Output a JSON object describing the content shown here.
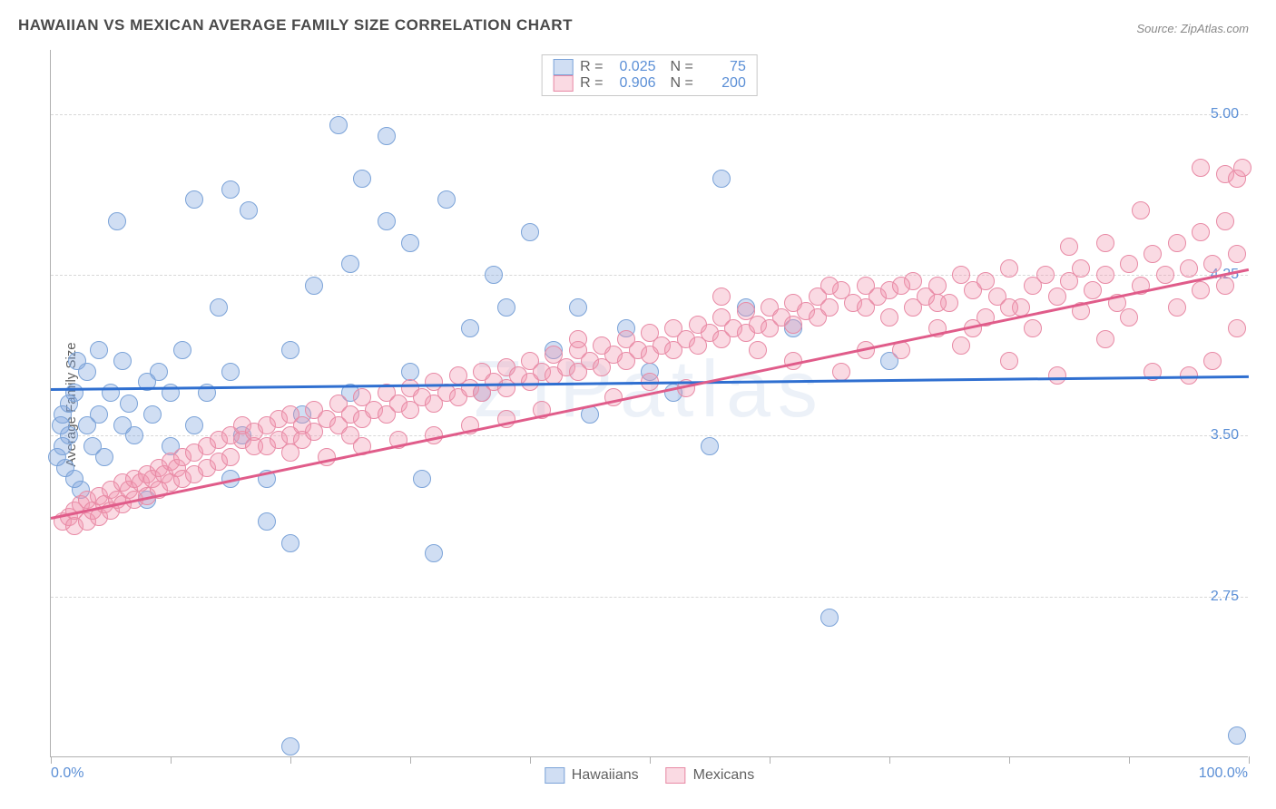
{
  "title": "HAWAIIAN VS MEXICAN AVERAGE FAMILY SIZE CORRELATION CHART",
  "source": "Source: ZipAtlas.com",
  "ylabel": "Average Family Size",
  "watermark": "ZIPatlas",
  "chart": {
    "type": "scatter",
    "xlim": [
      0,
      100
    ],
    "ylim": [
      2.0,
      5.3
    ],
    "yticks": [
      2.75,
      3.5,
      4.25,
      5.0
    ],
    "ytick_labels": [
      "2.75",
      "3.50",
      "4.25",
      "5.00"
    ],
    "xticks": [
      0,
      10,
      20,
      30,
      40,
      50,
      60,
      70,
      80,
      90,
      100
    ],
    "xmin_label": "0.0%",
    "xmax_label": "100.0%",
    "background_color": "#ffffff",
    "grid_color": "#d8d8d8",
    "axis_color": "#b0b0b0",
    "tick_label_color": "#5b8fd6",
    "marker_radius": 10,
    "marker_border_width": 1.5,
    "marker_fill_opacity": 0.35,
    "series": [
      {
        "name": "Hawaiians",
        "color_fill": "rgba(120,160,220,0.35)",
        "color_stroke": "#7ba3d8",
        "R": "0.025",
        "N": "75",
        "trend": {
          "x0": 0,
          "y0": 3.72,
          "x1": 100,
          "y1": 3.78,
          "color": "#2f6fd0",
          "width": 3
        },
        "points": [
          [
            0.5,
            3.4
          ],
          [
            0.8,
            3.55
          ],
          [
            1,
            3.45
          ],
          [
            1,
            3.6
          ],
          [
            1.2,
            3.35
          ],
          [
            1.5,
            3.5
          ],
          [
            1.5,
            3.65
          ],
          [
            2,
            3.7
          ],
          [
            2,
            3.3
          ],
          [
            2.2,
            3.85
          ],
          [
            2.5,
            3.25
          ],
          [
            3,
            3.8
          ],
          [
            3,
            3.55
          ],
          [
            3.5,
            3.45
          ],
          [
            4,
            3.9
          ],
          [
            4,
            3.6
          ],
          [
            4.5,
            3.4
          ],
          [
            5,
            3.7
          ],
          [
            5.5,
            4.5
          ],
          [
            6,
            3.55
          ],
          [
            6,
            3.85
          ],
          [
            6.5,
            3.65
          ],
          [
            7,
            3.5
          ],
          [
            8,
            3.75
          ],
          [
            8,
            3.2
          ],
          [
            8.5,
            3.6
          ],
          [
            9,
            3.8
          ],
          [
            10,
            3.7
          ],
          [
            10,
            3.45
          ],
          [
            11,
            3.9
          ],
          [
            12,
            4.6
          ],
          [
            12,
            3.55
          ],
          [
            13,
            3.7
          ],
          [
            14,
            4.1
          ],
          [
            15,
            4.65
          ],
          [
            15,
            3.8
          ],
          [
            16,
            3.5
          ],
          [
            16.5,
            4.55
          ],
          [
            18,
            3.3
          ],
          [
            18,
            3.1
          ],
          [
            20,
            3.9
          ],
          [
            20,
            3.0
          ],
          [
            21,
            3.6
          ],
          [
            22,
            4.2
          ],
          [
            24,
            4.95
          ],
          [
            25,
            3.7
          ],
          [
            25,
            4.3
          ],
          [
            26,
            4.7
          ],
          [
            28,
            4.5
          ],
          [
            28,
            4.9
          ],
          [
            30,
            3.8
          ],
          [
            30,
            4.4
          ],
          [
            31,
            3.3
          ],
          [
            32,
            2.95
          ],
          [
            33,
            4.6
          ],
          [
            35,
            4.0
          ],
          [
            36,
            3.7
          ],
          [
            37,
            4.25
          ],
          [
            38,
            4.1
          ],
          [
            40,
            4.45
          ],
          [
            42,
            3.9
          ],
          [
            44,
            4.1
          ],
          [
            45,
            3.6
          ],
          [
            48,
            4.0
          ],
          [
            50,
            3.8
          ],
          [
            52,
            3.7
          ],
          [
            55,
            3.45
          ],
          [
            56,
            4.7
          ],
          [
            58,
            4.1
          ],
          [
            62,
            4.0
          ],
          [
            65,
            2.65
          ],
          [
            70,
            3.85
          ],
          [
            99,
            2.1
          ],
          [
            20,
            2.05
          ],
          [
            15,
            3.3
          ]
        ]
      },
      {
        "name": "Mexicans",
        "color_fill": "rgba(240,150,175,0.35)",
        "color_stroke": "#e88aa5",
        "R": "0.906",
        "N": "200",
        "trend": {
          "x0": 0,
          "y0": 3.12,
          "x1": 100,
          "y1": 4.28,
          "color": "#e05c8a",
          "width": 3
        },
        "points": [
          [
            1,
            3.1
          ],
          [
            1.5,
            3.12
          ],
          [
            2,
            3.08
          ],
          [
            2,
            3.15
          ],
          [
            2.5,
            3.18
          ],
          [
            3,
            3.1
          ],
          [
            3,
            3.2
          ],
          [
            3.5,
            3.15
          ],
          [
            4,
            3.22
          ],
          [
            4,
            3.12
          ],
          [
            4.5,
            3.18
          ],
          [
            5,
            3.25
          ],
          [
            5,
            3.15
          ],
          [
            5.5,
            3.2
          ],
          [
            6,
            3.28
          ],
          [
            6,
            3.18
          ],
          [
            6.5,
            3.25
          ],
          [
            7,
            3.3
          ],
          [
            7,
            3.2
          ],
          [
            7.5,
            3.28
          ],
          [
            8,
            3.32
          ],
          [
            8,
            3.22
          ],
          [
            8.5,
            3.3
          ],
          [
            9,
            3.35
          ],
          [
            9,
            3.25
          ],
          [
            9.5,
            3.32
          ],
          [
            10,
            3.38
          ],
          [
            10,
            3.28
          ],
          [
            10.5,
            3.35
          ],
          [
            11,
            3.4
          ],
          [
            11,
            3.3
          ],
          [
            12,
            3.42
          ],
          [
            12,
            3.32
          ],
          [
            13,
            3.45
          ],
          [
            13,
            3.35
          ],
          [
            14,
            3.48
          ],
          [
            14,
            3.38
          ],
          [
            15,
            3.5
          ],
          [
            15,
            3.4
          ],
          [
            16,
            3.48
          ],
          [
            16,
            3.55
          ],
          [
            17,
            3.45
          ],
          [
            17,
            3.52
          ],
          [
            18,
            3.55
          ],
          [
            18,
            3.45
          ],
          [
            19,
            3.58
          ],
          [
            19,
            3.48
          ],
          [
            20,
            3.5
          ],
          [
            20,
            3.6
          ],
          [
            21,
            3.55
          ],
          [
            21,
            3.48
          ],
          [
            22,
            3.62
          ],
          [
            22,
            3.52
          ],
          [
            23,
            3.58
          ],
          [
            24,
            3.65
          ],
          [
            24,
            3.55
          ],
          [
            25,
            3.6
          ],
          [
            25,
            3.5
          ],
          [
            26,
            3.68
          ],
          [
            26,
            3.58
          ],
          [
            27,
            3.62
          ],
          [
            28,
            3.7
          ],
          [
            28,
            3.6
          ],
          [
            29,
            3.65
          ],
          [
            30,
            3.72
          ],
          [
            30,
            3.62
          ],
          [
            31,
            3.68
          ],
          [
            32,
            3.75
          ],
          [
            32,
            3.65
          ],
          [
            33,
            3.7
          ],
          [
            34,
            3.78
          ],
          [
            34,
            3.68
          ],
          [
            35,
            3.72
          ],
          [
            36,
            3.8
          ],
          [
            36,
            3.7
          ],
          [
            37,
            3.75
          ],
          [
            38,
            3.82
          ],
          [
            38,
            3.72
          ],
          [
            39,
            3.78
          ],
          [
            40,
            3.85
          ],
          [
            40,
            3.75
          ],
          [
            41,
            3.8
          ],
          [
            42,
            3.88
          ],
          [
            42,
            3.78
          ],
          [
            43,
            3.82
          ],
          [
            44,
            3.9
          ],
          [
            44,
            3.8
          ],
          [
            45,
            3.85
          ],
          [
            46,
            3.92
          ],
          [
            46,
            3.82
          ],
          [
            47,
            3.88
          ],
          [
            48,
            3.95
          ],
          [
            48,
            3.85
          ],
          [
            49,
            3.9
          ],
          [
            50,
            3.98
          ],
          [
            50,
            3.88
          ],
          [
            51,
            3.92
          ],
          [
            52,
            4.0
          ],
          [
            52,
            3.9
          ],
          [
            53,
            3.95
          ],
          [
            54,
            4.02
          ],
          [
            54,
            3.92
          ],
          [
            55,
            3.98
          ],
          [
            56,
            4.05
          ],
          [
            56,
            3.95
          ],
          [
            57,
            4.0
          ],
          [
            58,
            4.08
          ],
          [
            58,
            3.98
          ],
          [
            59,
            4.02
          ],
          [
            60,
            4.1
          ],
          [
            60,
            4.0
          ],
          [
            61,
            4.05
          ],
          [
            62,
            4.12
          ],
          [
            62,
            4.02
          ],
          [
            63,
            4.08
          ],
          [
            64,
            4.15
          ],
          [
            64,
            4.05
          ],
          [
            65,
            4.1
          ],
          [
            66,
            4.18
          ],
          [
            66,
            3.8
          ],
          [
            67,
            4.12
          ],
          [
            68,
            4.2
          ],
          [
            68,
            4.1
          ],
          [
            69,
            4.15
          ],
          [
            70,
            4.05
          ],
          [
            70,
            4.18
          ],
          [
            71,
            3.9
          ],
          [
            72,
            4.22
          ],
          [
            72,
            4.1
          ],
          [
            73,
            4.15
          ],
          [
            74,
            4.0
          ],
          [
            74,
            4.2
          ],
          [
            75,
            4.12
          ],
          [
            76,
            4.25
          ],
          [
            76,
            3.92
          ],
          [
            77,
            4.18
          ],
          [
            78,
            4.05
          ],
          [
            78,
            4.22
          ],
          [
            79,
            4.15
          ],
          [
            80,
            4.28
          ],
          [
            80,
            3.85
          ],
          [
            81,
            4.1
          ],
          [
            82,
            4.2
          ],
          [
            82,
            4.0
          ],
          [
            83,
            4.25
          ],
          [
            84,
            4.15
          ],
          [
            84,
            3.78
          ],
          [
            85,
            4.22
          ],
          [
            86,
            4.08
          ],
          [
            86,
            4.28
          ],
          [
            87,
            4.18
          ],
          [
            88,
            4.25
          ],
          [
            88,
            3.95
          ],
          [
            89,
            4.12
          ],
          [
            90,
            4.3
          ],
          [
            90,
            4.05
          ],
          [
            91,
            4.2
          ],
          [
            92,
            4.35
          ],
          [
            92,
            3.8
          ],
          [
            93,
            4.25
          ],
          [
            94,
            4.4
          ],
          [
            94,
            4.1
          ],
          [
            95,
            4.28
          ],
          [
            95,
            3.78
          ],
          [
            96,
            4.45
          ],
          [
            96,
            4.18
          ],
          [
            96,
            4.75
          ],
          [
            97,
            4.3
          ],
          [
            97,
            3.85
          ],
          [
            98,
            4.5
          ],
          [
            98,
            4.72
          ],
          [
            98,
            4.2
          ],
          [
            99,
            4.7
          ],
          [
            99,
            4.0
          ],
          [
            99,
            4.35
          ],
          [
            99.5,
            4.75
          ],
          [
            91,
            4.55
          ],
          [
            88,
            4.4
          ],
          [
            85,
            4.38
          ],
          [
            80,
            4.1
          ],
          [
            77,
            4.0
          ],
          [
            74,
            4.12
          ],
          [
            71,
            4.2
          ],
          [
            68,
            3.9
          ],
          [
            65,
            4.2
          ],
          [
            62,
            3.85
          ],
          [
            59,
            3.9
          ],
          [
            56,
            4.15
          ],
          [
            53,
            3.72
          ],
          [
            50,
            3.75
          ],
          [
            47,
            3.68
          ],
          [
            44,
            3.95
          ],
          [
            41,
            3.62
          ],
          [
            38,
            3.58
          ],
          [
            35,
            3.55
          ],
          [
            32,
            3.5
          ],
          [
            29,
            3.48
          ],
          [
            26,
            3.45
          ],
          [
            23,
            3.4
          ],
          [
            20,
            3.42
          ]
        ]
      }
    ]
  },
  "legend_top_rows": [
    {
      "sw_fill": "rgba(120,160,220,0.35)",
      "sw_stroke": "#7ba3d8",
      "R_label": "R =",
      "R_val": "0.025",
      "N_label": "N =",
      "N_val": "75"
    },
    {
      "sw_fill": "rgba(240,150,175,0.35)",
      "sw_stroke": "#e88aa5",
      "R_label": "R =",
      "R_val": "0.906",
      "N_label": "N =",
      "N_val": "200"
    }
  ],
  "legend_bottom": [
    {
      "sw_fill": "rgba(120,160,220,0.35)",
      "sw_stroke": "#7ba3d8",
      "label": "Hawaiians"
    },
    {
      "sw_fill": "rgba(240,150,175,0.35)",
      "sw_stroke": "#e88aa5",
      "label": "Mexicans"
    }
  ]
}
